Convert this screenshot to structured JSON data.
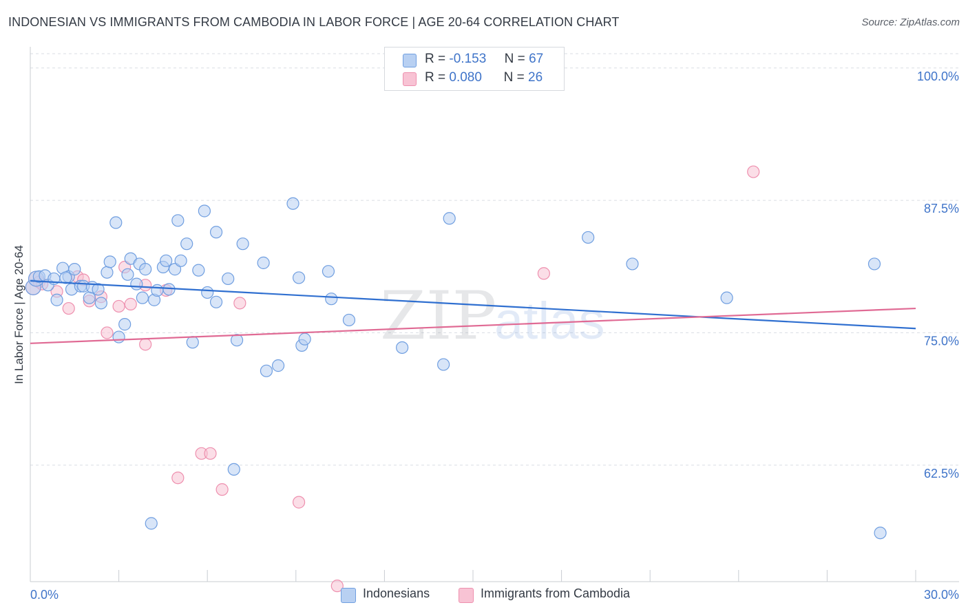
{
  "header": {
    "title": "INDONESIAN VS IMMIGRANTS FROM CAMBODIA IN LABOR FORCE | AGE 20-64 CORRELATION CHART",
    "source": "Source: ZipAtlas.com"
  },
  "watermark": {
    "zip": "ZIP",
    "atlas": "atlas"
  },
  "legend": {
    "r_label": "R =",
    "n_label": "N =",
    "rows": [
      {
        "r": "-0.153",
        "n": "67"
      },
      {
        "r": "0.080",
        "n": "26"
      }
    ]
  },
  "colors": {
    "blue_fill": "#b8d0f2",
    "blue_stroke": "#6f9ee0",
    "blue_line": "#2f6fd0",
    "pink_fill": "#f8c3d4",
    "pink_stroke": "#ee8fae",
    "pink_line": "#e06a94",
    "grid": "#d9dde3",
    "tick_text": "#3f74c9"
  },
  "chart_data": {
    "type": "scatter",
    "title": "INDONESIAN VS IMMIGRANTS FROM CAMBODIA IN LABOR FORCE | AGE 20-64 CORRELATION CHART",
    "xlabel": "",
    "ylabel": "In Labor Force | Age 20-64",
    "xlim": [
      0,
      30
    ],
    "ylim": [
      51.5,
      102
    ],
    "x_tick_labels": [
      "0.0%",
      "30.0%"
    ],
    "y_ticks": [
      62.5,
      75.0,
      87.5,
      100.0
    ],
    "y_tick_labels": [
      "62.5%",
      "75.0%",
      "87.5%",
      "100.0%"
    ],
    "grid": "horizontal dashed",
    "legend_position": "top-center",
    "series": [
      {
        "name": "Indonesians",
        "color": "blue",
        "r": -0.153,
        "n": 67,
        "trend": {
          "x": [
            0,
            30
          ],
          "y": [
            79.9,
            75.4
          ]
        },
        "points": [
          [
            0.1,
            79.3
          ],
          [
            0.2,
            80.1
          ],
          [
            0.3,
            80.3
          ],
          [
            0.5,
            80.4
          ],
          [
            0.6,
            79.5
          ],
          [
            0.8,
            80.1
          ],
          [
            0.9,
            78.1
          ],
          [
            1.1,
            81.1
          ],
          [
            1.3,
            80.3
          ],
          [
            1.4,
            79.1
          ],
          [
            1.5,
            81.0
          ],
          [
            1.7,
            79.4
          ],
          [
            1.8,
            79.4
          ],
          [
            2.0,
            78.3
          ],
          [
            2.1,
            79.3
          ],
          [
            2.3,
            79.1
          ],
          [
            2.4,
            77.8
          ],
          [
            2.6,
            80.7
          ],
          [
            2.7,
            81.7
          ],
          [
            2.9,
            85.4
          ],
          [
            3.0,
            74.6
          ],
          [
            3.2,
            75.8
          ],
          [
            3.3,
            80.5
          ],
          [
            3.4,
            82.0
          ],
          [
            3.6,
            79.6
          ],
          [
            3.7,
            81.5
          ],
          [
            3.8,
            78.3
          ],
          [
            3.9,
            81.0
          ],
          [
            4.1,
            57.0
          ],
          [
            4.2,
            78.1
          ],
          [
            4.3,
            79.0
          ],
          [
            4.5,
            81.2
          ],
          [
            4.6,
            81.8
          ],
          [
            4.7,
            79.1
          ],
          [
            4.9,
            81.0
          ],
          [
            5.0,
            85.6
          ],
          [
            5.1,
            81.8
          ],
          [
            5.3,
            83.4
          ],
          [
            5.5,
            74.1
          ],
          [
            5.7,
            80.9
          ],
          [
            5.9,
            86.5
          ],
          [
            6.0,
            78.8
          ],
          [
            6.3,
            77.9
          ],
          [
            6.3,
            84.5
          ],
          [
            6.7,
            80.1
          ],
          [
            6.9,
            62.1
          ],
          [
            7.0,
            74.3
          ],
          [
            7.2,
            83.4
          ],
          [
            7.9,
            81.6
          ],
          [
            8.0,
            71.4
          ],
          [
            8.4,
            71.9
          ],
          [
            8.9,
            87.2
          ],
          [
            9.1,
            80.2
          ],
          [
            9.2,
            73.8
          ],
          [
            9.3,
            74.4
          ],
          [
            10.1,
            80.8
          ],
          [
            10.2,
            78.2
          ],
          [
            10.8,
            76.2
          ],
          [
            12.6,
            73.6
          ],
          [
            14.0,
            72.0
          ],
          [
            14.2,
            85.8
          ],
          [
            18.9,
            84.0
          ],
          [
            20.4,
            81.5
          ],
          [
            23.6,
            78.3
          ],
          [
            28.6,
            81.5
          ],
          [
            28.8,
            56.1
          ],
          [
            1.2,
            80.2
          ]
        ]
      },
      {
        "name": "Immigrants from Cambodia",
        "color": "pink",
        "r": 0.08,
        "n": 26,
        "trend": {
          "x": [
            0,
            30
          ],
          "y": [
            74.0,
            77.3
          ]
        },
        "points": [
          [
            0.1,
            79.3
          ],
          [
            0.2,
            80.1
          ],
          [
            0.3,
            79.8
          ],
          [
            0.4,
            79.6
          ],
          [
            0.9,
            78.9
          ],
          [
            1.3,
            77.3
          ],
          [
            1.6,
            80.3
          ],
          [
            1.8,
            80.0
          ],
          [
            2.0,
            78.0
          ],
          [
            2.4,
            78.4
          ],
          [
            2.6,
            75.0
          ],
          [
            3.0,
            77.5
          ],
          [
            3.2,
            81.2
          ],
          [
            3.4,
            77.7
          ],
          [
            3.9,
            79.5
          ],
          [
            3.9,
            73.9
          ],
          [
            4.6,
            79.0
          ],
          [
            5.0,
            61.3
          ],
          [
            5.8,
            63.6
          ],
          [
            6.1,
            63.6
          ],
          [
            6.5,
            60.2
          ],
          [
            7.1,
            77.8
          ],
          [
            9.1,
            59.0
          ],
          [
            10.4,
            51.1
          ],
          [
            17.4,
            80.6
          ],
          [
            24.5,
            90.2
          ]
        ]
      }
    ]
  },
  "bottom_legend": [
    {
      "label": "Indonesians"
    },
    {
      "label": "Immigrants from Cambodia"
    }
  ]
}
